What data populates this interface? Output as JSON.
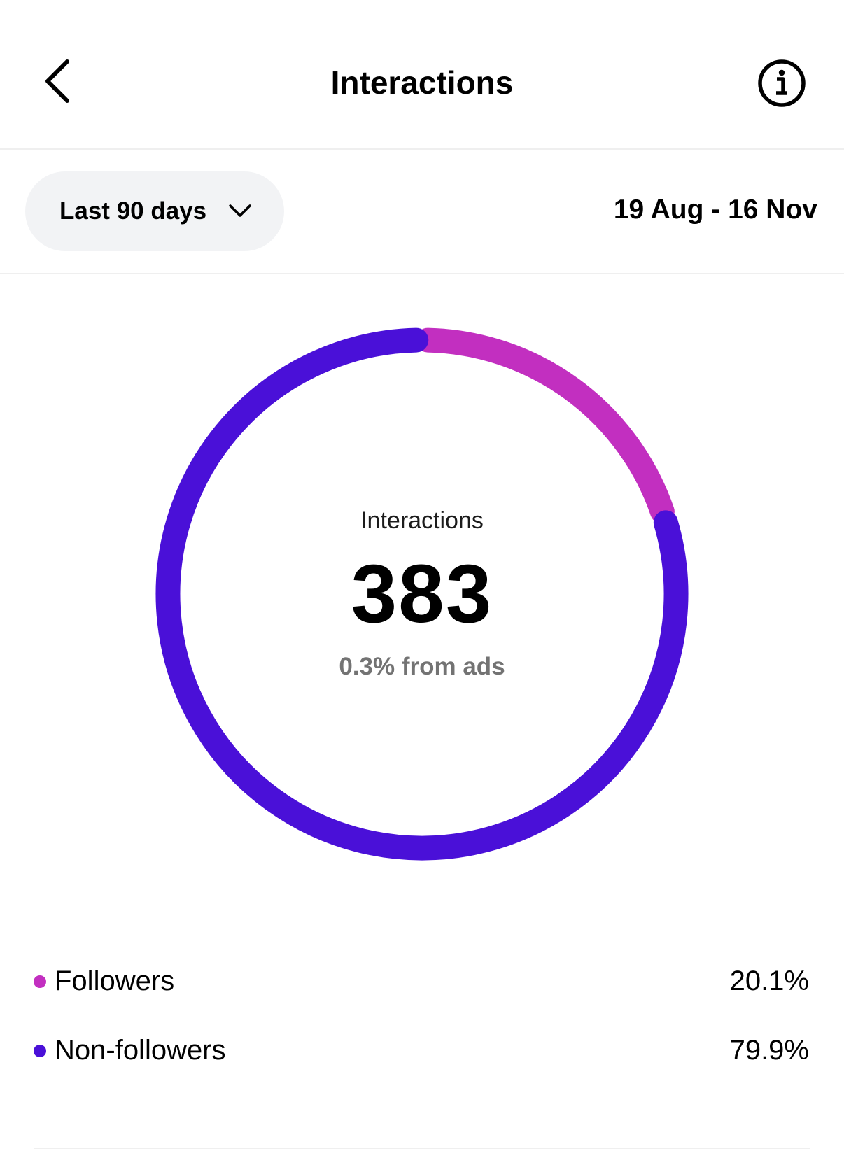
{
  "header": {
    "title": "Interactions",
    "back_icon": "chevron-left-icon",
    "info_icon": "info-icon"
  },
  "filter": {
    "selected_range": "Last 90 days",
    "dropdown_icon": "chevron-down-icon",
    "date_range": "19 Aug - 16 Nov"
  },
  "summary": {
    "label": "Interactions",
    "value": "383",
    "ads_note": "0.3% from ads"
  },
  "colors": {
    "followers": "#c22fc0",
    "non_followers": "#4a10d8"
  },
  "chart_data": {
    "type": "pie",
    "donut": true,
    "categories": [
      "Followers",
      "Non-followers"
    ],
    "values": [
      20.1,
      79.9
    ],
    "unit": "%"
  },
  "legend": [
    {
      "label": "Followers",
      "value": "20.1%"
    },
    {
      "label": "Non-followers",
      "value": "79.9%"
    }
  ]
}
